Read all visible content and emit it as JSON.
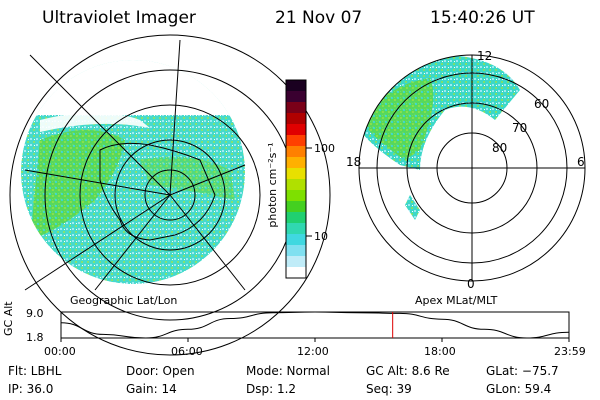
{
  "header": {
    "title": "Ultraviolet Imager",
    "date": "21 Nov 07",
    "time": "15:40:26 UT"
  },
  "colorbar": {
    "label": "photon cm⁻²s⁻¹",
    "ticks": [
      "100",
      "10"
    ],
    "colors": [
      "#1a0020",
      "#3a0030",
      "#7a0018",
      "#b00000",
      "#e00000",
      "#ff4000",
      "#ff8000",
      "#ffb000",
      "#e8e000",
      "#b0e000",
      "#7ee000",
      "#44d020",
      "#20d070",
      "#30d8b0",
      "#40d8e0",
      "#80e0f0",
      "#c0ecf8",
      "#ffffff"
    ]
  },
  "panels": {
    "left_label": "Geographic Lat/Lon",
    "right_label": "Apex MLat/MLT"
  },
  "mlt_labels": {
    "top": "12",
    "left": "18",
    "right": "6",
    "bottom": "0"
  },
  "mlat_labels": [
    "60",
    "70",
    "80"
  ],
  "chart_data": {
    "type": "line",
    "title": "",
    "ylabel": "GC Alt",
    "yticks": [
      "9.0",
      "1.8"
    ],
    "ylim": [
      1.8,
      9.0
    ],
    "xticks": [
      "00:00",
      "06:00",
      "12:00",
      "18:00",
      "23:59"
    ],
    "x": [
      0,
      2,
      4,
      6,
      8,
      10,
      12,
      14,
      16,
      18,
      20,
      22,
      23.98
    ],
    "values": [
      6.0,
      2.8,
      1.8,
      4.2,
      7.2,
      8.8,
      9.0,
      8.8,
      8.6,
      7.0,
      4.2,
      1.8,
      3.4
    ],
    "marker_time_hours": 15.67
  },
  "status": {
    "flt": "Flt: LBHL",
    "door": "Door: Open",
    "mode": "Mode: Normal",
    "gcalt": "GC Alt: 8.6 Re",
    "glat": "GLat: −75.7",
    "ip": "IP: 36.0",
    "gain": "Gain: 14",
    "dsp": "Dsp:     1.2",
    "seq": "Seq: 39",
    "glon": "GLon:  59.4"
  },
  "colors": {
    "aurora": "#3cd8c8",
    "band": "#5ad84a",
    "marker": "#dd0000"
  }
}
